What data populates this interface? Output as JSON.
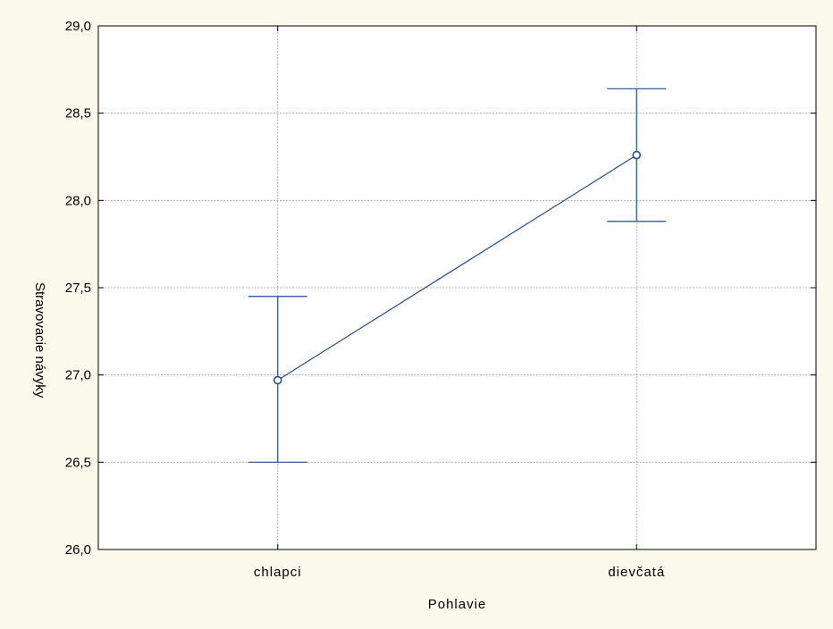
{
  "chart_data": {
    "type": "line",
    "title": "",
    "xlabel": "Pohlavie",
    "ylabel": "Stravovacie návyky",
    "categories": [
      "chlapci",
      "dievčatá"
    ],
    "series": [
      {
        "values": [
          26.97,
          28.26
        ],
        "lower": [
          26.5,
          27.88
        ],
        "upper": [
          27.45,
          28.64
        ]
      }
    ],
    "ylim": [
      26.0,
      29.0
    ],
    "yticks": [
      "26,0",
      "26,5",
      "27,0",
      "27,5",
      "28,0",
      "28,5",
      "29,0"
    ],
    "ytick_values": [
      26.0,
      26.5,
      27.0,
      27.5,
      28.0,
      28.5,
      29.0
    ],
    "grid": true,
    "colors": {
      "background": "#fbf8ec",
      "plot_bg": "#ffffff",
      "series": "#1f4e96",
      "grid": "#9a9a9a",
      "frame": "#000000"
    }
  }
}
